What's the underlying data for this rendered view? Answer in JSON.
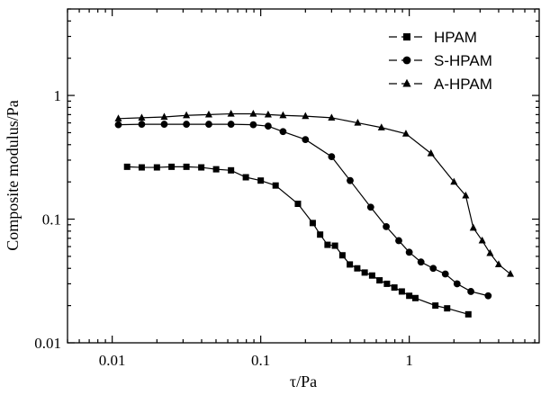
{
  "chart_data": {
    "type": "line",
    "title": "",
    "xlabel": "τ/Pa",
    "ylabel": "Composite modulus/Pa",
    "xscale": "log",
    "yscale": "log",
    "xlim": [
      0.005,
      7.5
    ],
    "ylim": [
      0.01,
      5
    ],
    "x_ticks": [
      {
        "value": 0.01,
        "label": "0.01"
      },
      {
        "value": 0.1,
        "label": "0.1"
      },
      {
        "value": 1,
        "label": "1"
      }
    ],
    "y_ticks": [
      {
        "value": 0.01,
        "label": "0.01"
      },
      {
        "value": 0.1,
        "label": "0.1"
      },
      {
        "value": 1,
        "label": "1"
      }
    ],
    "grid": false,
    "legend_position": "top-right",
    "series": [
      {
        "name": "HPAM",
        "marker": "square",
        "points": [
          [
            0.0126,
            0.265
          ],
          [
            0.0158,
            0.262
          ],
          [
            0.02,
            0.262
          ],
          [
            0.0251,
            0.265
          ],
          [
            0.0316,
            0.265
          ],
          [
            0.0398,
            0.262
          ],
          [
            0.0501,
            0.253
          ],
          [
            0.0631,
            0.248
          ],
          [
            0.0794,
            0.218
          ],
          [
            0.1,
            0.205
          ],
          [
            0.126,
            0.187
          ],
          [
            0.178,
            0.133
          ],
          [
            0.224,
            0.093
          ],
          [
            0.2512,
            0.075
          ],
          [
            0.2818,
            0.062
          ],
          [
            0.3162,
            0.061
          ],
          [
            0.3548,
            0.051
          ],
          [
            0.3981,
            0.043
          ],
          [
            0.4467,
            0.04
          ],
          [
            0.5012,
            0.037
          ],
          [
            0.5623,
            0.035
          ],
          [
            0.631,
            0.032
          ],
          [
            0.7079,
            0.03
          ],
          [
            0.7943,
            0.028
          ],
          [
            0.8913,
            0.026
          ],
          [
            1.0,
            0.024
          ],
          [
            1.1,
            0.023
          ],
          [
            1.5,
            0.02
          ],
          [
            1.8,
            0.019
          ],
          [
            2.5,
            0.017
          ]
        ]
      },
      {
        "name": "S-HPAM",
        "marker": "circle",
        "points": [
          [
            0.011,
            0.58
          ],
          [
            0.0158,
            0.585
          ],
          [
            0.0224,
            0.585
          ],
          [
            0.0316,
            0.585
          ],
          [
            0.0447,
            0.585
          ],
          [
            0.0631,
            0.585
          ],
          [
            0.0891,
            0.58
          ],
          [
            0.1122,
            0.565
          ],
          [
            0.1413,
            0.51
          ],
          [
            0.2,
            0.44
          ],
          [
            0.3,
            0.32
          ],
          [
            0.4,
            0.205
          ],
          [
            0.55,
            0.125
          ],
          [
            0.7,
            0.087
          ],
          [
            0.85,
            0.067
          ],
          [
            1.0,
            0.054
          ],
          [
            1.2,
            0.045
          ],
          [
            1.45,
            0.04
          ],
          [
            1.75,
            0.036
          ],
          [
            2.1,
            0.03
          ],
          [
            2.6,
            0.026
          ],
          [
            3.4,
            0.024
          ]
        ]
      },
      {
        "name": "A-HPAM",
        "marker": "triangle",
        "points": [
          [
            0.011,
            0.65
          ],
          [
            0.0158,
            0.66
          ],
          [
            0.0224,
            0.67
          ],
          [
            0.0316,
            0.69
          ],
          [
            0.0447,
            0.7
          ],
          [
            0.0631,
            0.71
          ],
          [
            0.0891,
            0.71
          ],
          [
            0.1122,
            0.7
          ],
          [
            0.1413,
            0.69
          ],
          [
            0.2,
            0.68
          ],
          [
            0.3,
            0.66
          ],
          [
            0.45,
            0.6
          ],
          [
            0.65,
            0.55
          ],
          [
            0.95,
            0.49
          ],
          [
            1.4,
            0.34
          ],
          [
            2.0,
            0.2
          ],
          [
            2.4,
            0.155
          ],
          [
            2.7,
            0.085
          ],
          [
            3.1,
            0.067
          ],
          [
            3.5,
            0.053
          ],
          [
            4.0,
            0.043
          ],
          [
            4.8,
            0.036
          ]
        ]
      }
    ]
  }
}
